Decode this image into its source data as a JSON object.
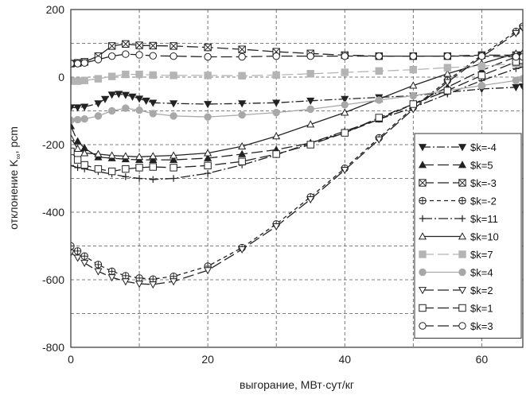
{
  "chart_data": {
    "type": "line",
    "xlabel": "выгорание, МВт·сут/кг",
    "ylabel_main": "отклонение K",
    "ylabel_sub": "∞",
    "ylabel_unit": ", pcm",
    "xlim": [
      0,
      66
    ],
    "ylim": [
      -800,
      200
    ],
    "xticks": [
      0,
      20,
      40,
      60
    ],
    "yticks": [
      200,
      0,
      -200,
      -400,
      -600,
      -800
    ],
    "grid": "dashed",
    "legend_position": "lower-right",
    "series": [
      {
        "name": "$k=-4",
        "marker": "tri-down-filled",
        "dash": "10,3,2,3",
        "color": "#222222",
        "x": [
          0,
          1,
          2,
          4,
          5,
          6,
          7,
          8,
          9,
          10,
          11,
          12,
          15,
          20,
          25,
          30,
          35,
          40,
          45,
          50,
          55,
          60,
          65,
          66
        ],
        "y": [
          -90,
          -90,
          -88,
          -78,
          -65,
          -52,
          -50,
          -53,
          -58,
          -64,
          -70,
          -76,
          -78,
          -80,
          -78,
          -76,
          -70,
          -65,
          -60,
          -55,
          -45,
          -35,
          -30,
          -28
        ]
      },
      {
        "name": "$k=5",
        "marker": "tri-up-filled",
        "dash": "14,5",
        "color": "#222222",
        "x": [
          0,
          1,
          2,
          4,
          6,
          8,
          10,
          12,
          15,
          20,
          25,
          30,
          35,
          40,
          45,
          50,
          55,
          60,
          65,
          66
        ],
        "y": [
          -145,
          -190,
          -210,
          -237,
          -240,
          -243,
          -245,
          -245,
          -245,
          -240,
          -228,
          -215,
          -195,
          -165,
          -125,
          -80,
          -30,
          20,
          60,
          65
        ]
      },
      {
        "name": "$k=-3",
        "marker": "square-x",
        "dash": "14,5",
        "color": "#222222",
        "x": [
          0,
          1,
          2,
          4,
          6,
          8,
          10,
          12,
          15,
          20,
          25,
          30,
          35,
          40,
          45,
          50,
          55,
          60,
          65,
          66
        ],
        "y": [
          40,
          42,
          45,
          62,
          92,
          98,
          94,
          93,
          92,
          88,
          82,
          75,
          70,
          65,
          62,
          62,
          62,
          65,
          65,
          65
        ]
      },
      {
        "name": "$k=-2",
        "marker": "circle-plus",
        "dash": "5,4",
        "color": "#222222",
        "x": [
          0,
          1,
          2,
          4,
          6,
          8,
          10,
          12,
          15,
          20,
          25,
          30,
          35,
          40,
          45,
          50,
          55,
          60,
          65,
          66
        ],
        "y": [
          -500,
          -515,
          -530,
          -555,
          -575,
          -588,
          -595,
          -598,
          -590,
          -560,
          -505,
          -435,
          -355,
          -270,
          -180,
          -90,
          -10,
          65,
          135,
          150
        ]
      },
      {
        "name": "$k=11",
        "marker": "plus",
        "dash": "12,3,2,3",
        "color": "#222222",
        "x": [
          0,
          1,
          2,
          4,
          6,
          8,
          10,
          12,
          15,
          20,
          25,
          30,
          35,
          40,
          45,
          50,
          55,
          60,
          65,
          66
        ],
        "y": [
          -262,
          -268,
          -272,
          -280,
          -287,
          -295,
          -300,
          -303,
          -300,
          -285,
          -260,
          -230,
          -195,
          -160,
          -125,
          -90,
          -50,
          -10,
          25,
          30
        ]
      },
      {
        "name": "$k=10",
        "marker": "tri-up-open",
        "dash": "",
        "color": "#222222",
        "x": [
          0,
          1,
          2,
          4,
          6,
          8,
          10,
          12,
          15,
          20,
          25,
          30,
          35,
          40,
          45,
          50,
          55,
          60,
          65,
          66
        ],
        "y": [
          -180,
          -212,
          -225,
          -228,
          -232,
          -234,
          -236,
          -234,
          -232,
          -225,
          -205,
          -175,
          -140,
          -105,
          -65,
          -25,
          10,
          40,
          70,
          72
        ]
      },
      {
        "name": "$k=7",
        "marker": "square-filled",
        "dash": "14,5",
        "color": "#b4b4b4",
        "x": [
          0,
          1,
          2,
          4,
          6,
          8,
          10,
          12,
          15,
          20,
          25,
          30,
          35,
          40,
          45,
          50,
          55,
          60,
          65,
          66
        ],
        "y": [
          -12,
          -12,
          -10,
          -5,
          2,
          8,
          8,
          6,
          5,
          5,
          4,
          6,
          10,
          14,
          18,
          22,
          28,
          32,
          40,
          42
        ]
      },
      {
        "name": "$k=4",
        "marker": "circle-filled",
        "dash": "",
        "color": "#a8a8a8",
        "x": [
          0,
          1,
          2,
          4,
          6,
          8,
          10,
          12,
          15,
          20,
          25,
          30,
          35,
          40,
          45,
          50,
          55,
          60,
          65,
          66
        ],
        "y": [
          -128,
          -126,
          -124,
          -115,
          -100,
          -92,
          -98,
          -108,
          -115,
          -118,
          -112,
          -105,
          -95,
          -82,
          -68,
          -55,
          -40,
          -25,
          -10,
          -5
        ]
      },
      {
        "name": "$k=2",
        "marker": "tri-down-open",
        "dash": "14,5",
        "color": "#222222",
        "x": [
          0,
          1,
          2,
          4,
          6,
          8,
          10,
          12,
          15,
          20,
          25,
          30,
          35,
          40,
          45,
          50,
          55,
          60,
          65,
          66
        ],
        "y": [
          -520,
          -535,
          -550,
          -575,
          -593,
          -605,
          -612,
          -614,
          -605,
          -572,
          -510,
          -442,
          -362,
          -275,
          -185,
          -95,
          -15,
          60,
          130,
          145
        ]
      },
      {
        "name": "$k=1",
        "marker": "square-open",
        "dash": "14,5",
        "color": "#222222",
        "x": [
          0,
          1,
          2,
          4,
          6,
          8,
          10,
          12,
          15,
          20,
          25,
          30,
          35,
          40,
          45,
          50,
          55,
          60,
          65,
          66
        ],
        "y": [
          -220,
          -245,
          -260,
          -272,
          -279,
          -272,
          -268,
          -266,
          -268,
          -262,
          -250,
          -228,
          -200,
          -165,
          -120,
          -80,
          -40,
          5,
          45,
          50
        ]
      },
      {
        "name": "$k=3",
        "marker": "circle-open",
        "dash": "14,5",
        "color": "#222222",
        "x": [
          0,
          1,
          2,
          4,
          6,
          8,
          10,
          12,
          15,
          20,
          25,
          30,
          35,
          40,
          45,
          50,
          55,
          60,
          65,
          66
        ],
        "y": [
          40,
          40,
          42,
          52,
          62,
          68,
          66,
          63,
          62,
          60,
          60,
          62,
          62,
          62,
          62,
          62,
          62,
          62,
          60,
          60
        ]
      }
    ]
  }
}
